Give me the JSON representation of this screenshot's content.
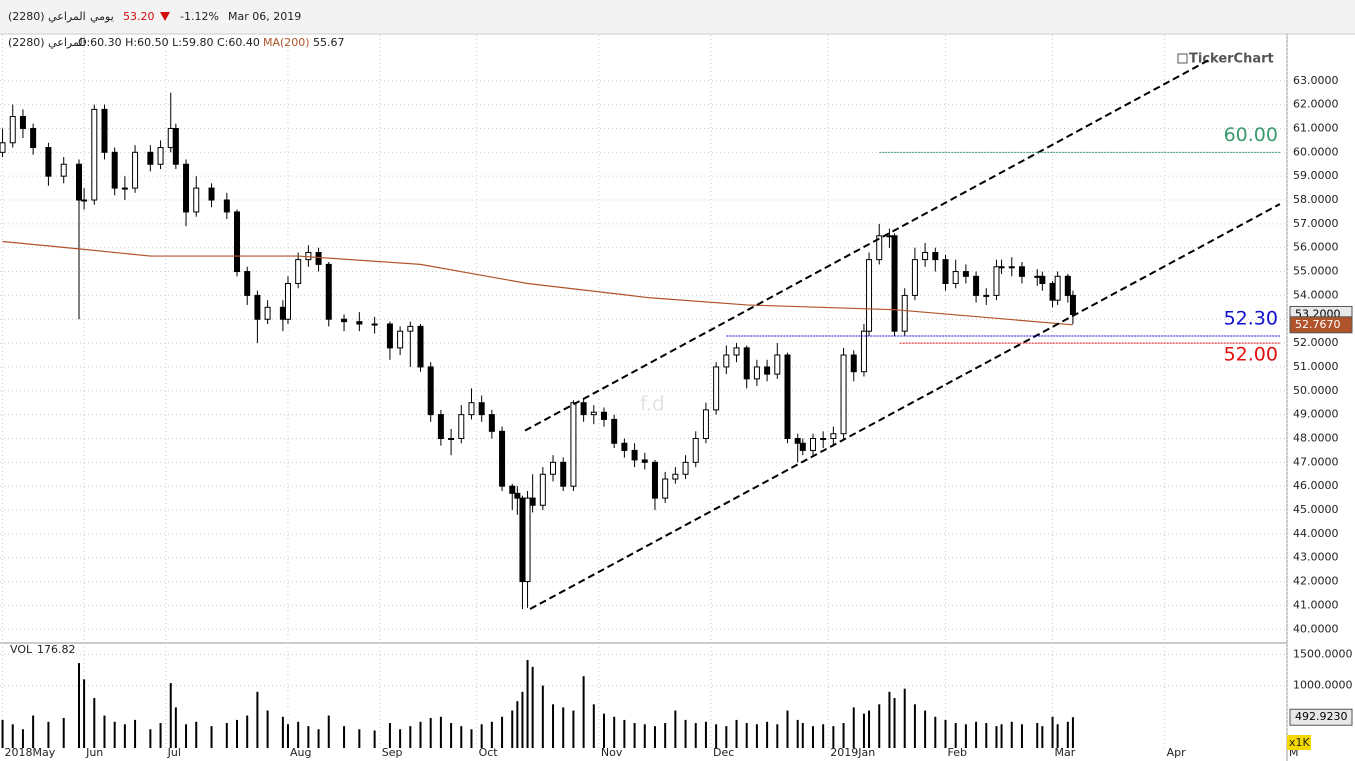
{
  "header": {
    "name": "المراعي (2280)",
    "period": "يومي",
    "price": "53.20",
    "change": "-1.12%",
    "date": "Mar 06, 2019"
  },
  "chart_data": {
    "type": "candlestick",
    "legend": {
      "name": "المراعي (2280)",
      "info": "O:60.30 H:60.50 L:59.80 C:60.40"
    },
    "watermark": "TickerChart",
    "note": "f.d",
    "xlim": [
      -0.5,
      252
    ],
    "ylim": [
      39.55,
      64.5
    ],
    "xticks": [
      {
        "value": 0,
        "label": "2018May"
      },
      {
        "value": 16,
        "label": "Jun"
      },
      {
        "value": 32,
        "label": "Jul"
      },
      {
        "value": 56,
        "label": "Aug"
      },
      {
        "value": 74,
        "label": "Sep"
      },
      {
        "value": 93,
        "label": "Oct"
      },
      {
        "value": 117,
        "label": "Nov"
      },
      {
        "value": 139,
        "label": "Dec"
      },
      {
        "value": 162,
        "label": "2019Jan"
      },
      {
        "value": 185,
        "label": "Feb"
      },
      {
        "value": 206,
        "label": "Mar"
      },
      {
        "value": 228,
        "label": "Apr"
      },
      {
        "value": 252,
        "label": "M"
      }
    ],
    "yticks": [
      {
        "value": 40,
        "label": "40.0000"
      },
      {
        "value": 41,
        "label": "41.0000"
      },
      {
        "value": 42,
        "label": "42.0000"
      },
      {
        "value": 43,
        "label": "43.0000"
      },
      {
        "value": 44,
        "label": "44.0000"
      },
      {
        "value": 45,
        "label": "45.0000"
      },
      {
        "value": 46,
        "label": "46.0000"
      },
      {
        "value": 47,
        "label": "47.0000"
      },
      {
        "value": 48,
        "label": "48.0000"
      },
      {
        "value": 49,
        "label": "49.0000"
      },
      {
        "value": 50,
        "label": "50.0000"
      },
      {
        "value": 51,
        "label": "51.0000"
      },
      {
        "value": 52,
        "label": "52.0000"
      },
      {
        "value": 53,
        "label": "53.0000"
      },
      {
        "value": 54,
        "label": "54.0000"
      },
      {
        "value": 55,
        "label": "55.0000"
      },
      {
        "value": 56,
        "label": "56.0000"
      },
      {
        "value": 57,
        "label": "57.0000"
      },
      {
        "value": 58,
        "label": "58.0000"
      },
      {
        "value": 59,
        "label": "59.0000"
      },
      {
        "value": 60,
        "label": "60.0000"
      },
      {
        "value": 61,
        "label": "61.0000"
      },
      {
        "value": 62,
        "label": "62.0000"
      },
      {
        "value": 63,
        "label": "63.0000"
      }
    ],
    "grid": true,
    "x": [
      0,
      2,
      4,
      6,
      9,
      12,
      15,
      16,
      18,
      20,
      22,
      24,
      26,
      29,
      31,
      33,
      34,
      36,
      38,
      41,
      44,
      46,
      48,
      50,
      52,
      55,
      56,
      58,
      60,
      62,
      64,
      67,
      70,
      73,
      76,
      78,
      80,
      82,
      84,
      86,
      88,
      90,
      92,
      94,
      96,
      98,
      100,
      101,
      102,
      103,
      104,
      106,
      108,
      110,
      112,
      114,
      116,
      118,
      120,
      122,
      124,
      126,
      128,
      130,
      132,
      134,
      136,
      138,
      140,
      142,
      144,
      146,
      148,
      150,
      152,
      154,
      156,
      157,
      159,
      161,
      163,
      165,
      167,
      169,
      170,
      172,
      174,
      175,
      177,
      179,
      181,
      183,
      185,
      187,
      189,
      191,
      193,
      195,
      196,
      198,
      200,
      203,
      204,
      206,
      207,
      209,
      210
    ],
    "ohlc": [
      [
        60.0,
        61.0,
        59.8,
        60.4
      ],
      [
        60.4,
        62.0,
        60.2,
        61.5
      ],
      [
        61.5,
        61.8,
        60.6,
        61.0
      ],
      [
        61.0,
        61.2,
        59.9,
        60.2
      ],
      [
        60.2,
        60.4,
        58.6,
        59.0
      ],
      [
        59.0,
        59.8,
        58.7,
        59.5
      ],
      [
        59.5,
        59.7,
        53.0,
        58.0
      ],
      [
        58.0,
        58.5,
        57.6,
        58.0
      ],
      [
        58.0,
        62.0,
        57.8,
        61.8
      ],
      [
        61.8,
        62.0,
        59.7,
        60.0
      ],
      [
        60.0,
        60.2,
        58.2,
        58.5
      ],
      [
        58.5,
        59.0,
        58.0,
        58.5
      ],
      [
        58.5,
        60.3,
        58.3,
        60.0
      ],
      [
        60.0,
        60.3,
        59.2,
        59.5
      ],
      [
        59.5,
        60.5,
        59.3,
        60.2
      ],
      [
        60.2,
        62.5,
        60.0,
        61.0
      ],
      [
        61.0,
        61.2,
        59.3,
        59.5
      ],
      [
        59.5,
        59.7,
        56.9,
        57.5
      ],
      [
        57.5,
        59.0,
        57.3,
        58.5
      ],
      [
        58.5,
        58.7,
        57.7,
        58.0
      ],
      [
        58.0,
        58.3,
        57.2,
        57.5
      ],
      [
        57.5,
        57.6,
        54.8,
        55.0
      ],
      [
        55.0,
        55.2,
        53.6,
        54.0
      ],
      [
        54.0,
        54.2,
        52.0,
        53.0
      ],
      [
        53.0,
        53.8,
        52.8,
        53.5
      ],
      [
        53.5,
        53.8,
        52.5,
        53.0
      ],
      [
        53.0,
        54.8,
        52.8,
        54.5
      ],
      [
        54.5,
        55.8,
        54.3,
        55.5
      ],
      [
        55.5,
        56.1,
        55.2,
        55.8
      ],
      [
        55.8,
        56.0,
        55.0,
        55.3
      ],
      [
        55.3,
        55.4,
        52.7,
        53.0
      ],
      [
        53.0,
        53.2,
        52.5,
        52.9
      ],
      [
        52.9,
        53.3,
        52.5,
        52.8
      ],
      [
        52.8,
        53.1,
        52.4,
        52.8
      ],
      [
        52.8,
        52.9,
        51.3,
        51.8
      ],
      [
        51.8,
        52.7,
        51.5,
        52.5
      ],
      [
        52.5,
        52.9,
        51.0,
        52.7
      ],
      [
        52.7,
        52.8,
        50.8,
        51.0
      ],
      [
        51.0,
        51.2,
        48.7,
        49.0
      ],
      [
        49.0,
        49.2,
        47.7,
        48.0
      ],
      [
        48.0,
        48.4,
        47.3,
        48.0
      ],
      [
        48.0,
        49.4,
        47.8,
        49.0
      ],
      [
        49.0,
        50.1,
        48.8,
        49.5
      ],
      [
        49.5,
        49.8,
        48.7,
        49.0
      ],
      [
        49.0,
        49.2,
        48.0,
        48.3
      ],
      [
        48.3,
        48.5,
        45.8,
        46.0
      ],
      [
        46.0,
        46.1,
        45.0,
        45.7
      ],
      [
        45.7,
        46.0,
        44.8,
        45.5
      ],
      [
        45.5,
        45.6,
        40.85,
        42.0
      ],
      [
        42.0,
        45.8,
        40.9,
        45.5
      ],
      [
        45.5,
        46.5,
        44.9,
        45.2
      ],
      [
        45.2,
        46.8,
        45.0,
        46.5
      ],
      [
        46.5,
        47.3,
        46.2,
        47.0
      ],
      [
        47.0,
        47.2,
        45.8,
        46.0
      ],
      [
        46.0,
        49.6,
        45.8,
        49.5
      ],
      [
        49.5,
        49.7,
        48.7,
        49.0
      ],
      [
        49.0,
        49.4,
        48.6,
        49.1
      ],
      [
        49.1,
        49.3,
        48.5,
        48.8
      ],
      [
        48.8,
        49.0,
        47.6,
        47.8
      ],
      [
        47.8,
        48.0,
        47.2,
        47.5
      ],
      [
        47.5,
        47.8,
        46.8,
        47.1
      ],
      [
        47.1,
        47.4,
        46.7,
        47.0
      ],
      [
        47.0,
        47.1,
        45.0,
        45.5
      ],
      [
        45.5,
        46.6,
        45.3,
        46.3
      ],
      [
        46.3,
        46.8,
        46.1,
        46.5
      ],
      [
        46.5,
        47.3,
        46.3,
        47.0
      ],
      [
        47.0,
        48.3,
        46.8,
        48.0
      ],
      [
        48.0,
        49.5,
        47.8,
        49.2
      ],
      [
        49.2,
        51.2,
        49.0,
        51.0
      ],
      [
        51.0,
        51.9,
        50.7,
        51.5
      ],
      [
        51.5,
        52.0,
        51.2,
        51.8
      ],
      [
        51.8,
        51.9,
        50.1,
        50.5
      ],
      [
        50.5,
        51.3,
        50.2,
        51.0
      ],
      [
        51.0,
        51.3,
        50.4,
        50.7
      ],
      [
        50.7,
        52.0,
        50.5,
        51.5
      ],
      [
        51.5,
        51.6,
        47.8,
        48.0
      ],
      [
        48.0,
        48.2,
        47.0,
        47.8
      ],
      [
        47.8,
        48.0,
        47.3,
        47.5
      ],
      [
        47.5,
        48.2,
        47.3,
        48.0
      ],
      [
        48.0,
        48.3,
        47.6,
        48.0
      ],
      [
        48.0,
        48.5,
        47.7,
        48.2
      ],
      [
        48.2,
        51.8,
        48.0,
        51.5
      ],
      [
        51.5,
        51.7,
        50.4,
        50.8
      ],
      [
        50.8,
        52.8,
        50.6,
        52.5
      ],
      [
        52.5,
        55.8,
        52.3,
        55.5
      ],
      [
        55.5,
        57.0,
        55.3,
        56.5
      ],
      [
        56.5,
        56.8,
        56.0,
        56.5
      ],
      [
        56.5,
        56.6,
        52.3,
        52.5
      ],
      [
        52.5,
        54.3,
        52.3,
        54.0
      ],
      [
        54.0,
        56.0,
        53.8,
        55.5
      ],
      [
        55.5,
        56.2,
        55.2,
        55.8
      ],
      [
        55.8,
        56.0,
        55.0,
        55.5
      ],
      [
        55.5,
        55.7,
        54.2,
        54.5
      ],
      [
        54.5,
        55.5,
        54.3,
        55.0
      ],
      [
        55.0,
        55.3,
        54.5,
        54.8
      ],
      [
        54.8,
        55.0,
        53.7,
        54.0
      ],
      [
        54.0,
        54.3,
        53.6,
        54.0
      ],
      [
        54.0,
        55.5,
        53.8,
        55.2
      ],
      [
        55.2,
        55.5,
        54.9,
        55.2
      ],
      [
        55.2,
        55.6,
        54.8,
        55.2
      ],
      [
        55.2,
        55.4,
        54.5,
        54.8
      ],
      [
        54.8,
        55.1,
        54.4,
        54.8
      ],
      [
        54.8,
        55.0,
        54.2,
        54.5
      ],
      [
        54.5,
        54.6,
        53.5,
        53.8
      ],
      [
        53.8,
        55.0,
        53.6,
        54.8
      ],
      [
        54.8,
        54.9,
        53.7,
        54.0
      ],
      [
        54.0,
        54.2,
        52.8,
        53.2
      ]
    ],
    "last_close": {
      "value": 53.2,
      "label": "53.2000"
    },
    "ma": {
      "label": "MA(200)",
      "legend_value": 55.67,
      "color": "#b0532a",
      "x": [
        0,
        15,
        29,
        58,
        82,
        103,
        127,
        146,
        175,
        210
      ],
      "values": [
        56.26,
        55.95,
        55.65,
        55.65,
        55.3,
        54.5,
        53.9,
        53.6,
        53.4,
        52.767
      ],
      "last": {
        "value": 52.767,
        "label": "52.7670"
      }
    },
    "levels": [
      {
        "value": 60,
        "label": "60.00",
        "color": "#3a9a6e",
        "from": 172,
        "side": "above"
      },
      {
        "value": 52.3,
        "label": "52.30",
        "color": "#1010d0",
        "from": 142,
        "side": "above"
      },
      {
        "value": 52,
        "label": "52.00",
        "color": "#e01010",
        "from": 176,
        "side": "below"
      }
    ],
    "trendlines": [
      [
        [
          102.5,
          48.33
        ],
        [
          237,
          63.91
        ]
      ],
      [
        [
          103.5,
          40.85
        ],
        [
          250.6,
          57.83
        ]
      ]
    ],
    "volume": {
      "label": "VOL",
      "legend_value": 176.82,
      "ylim": [
        0,
        1650
      ],
      "yticks": [
        {
          "value": 1000,
          "label": "1000.0000"
        },
        {
          "value": 1500,
          "label": "1500.0000"
        }
      ],
      "multiplier": "x1K",
      "last": {
        "value": 492.923,
        "label": "492.9230"
      },
      "values": [
        450,
        380,
        300,
        520,
        420,
        480,
        1360,
        1100,
        800,
        520,
        420,
        380,
        450,
        300,
        400,
        1040,
        650,
        380,
        420,
        350,
        400,
        450,
        520,
        900,
        600,
        500,
        380,
        420,
        350,
        300,
        520,
        350,
        300,
        280,
        400,
        300,
        350,
        420,
        480,
        500,
        400,
        350,
        300,
        380,
        420,
        500,
        600,
        750,
        900,
        1410,
        1300,
        1000,
        700,
        650,
        600,
        1150,
        700,
        550,
        500,
        450,
        400,
        380,
        350,
        400,
        600,
        450,
        400,
        420,
        380,
        350,
        450,
        400,
        380,
        420,
        380,
        600,
        450,
        400,
        350,
        380,
        350,
        400,
        650,
        550,
        600,
        700,
        900,
        800,
        950,
        700,
        600,
        500,
        450,
        400,
        380,
        420,
        400,
        350,
        380,
        420,
        380,
        400,
        350,
        500,
        380,
        420,
        492.923
      ]
    }
  }
}
